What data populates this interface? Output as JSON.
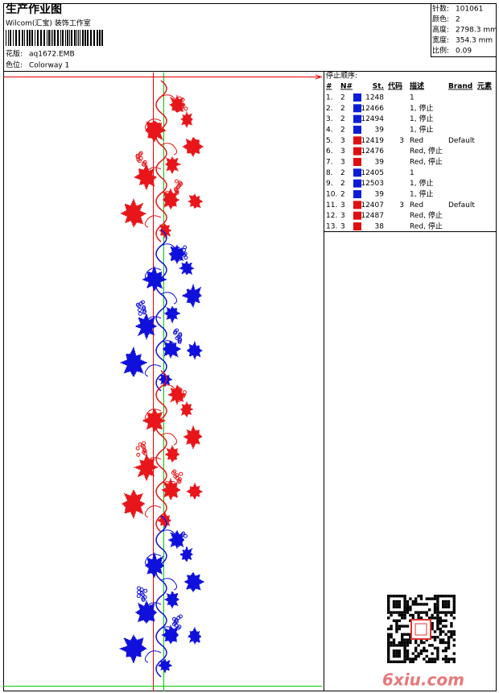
{
  "header": {
    "title": "生产作业图",
    "company": "Wilcom(汇宝) 装饰工作室",
    "design": {
      "label": "花版:",
      "value": "aq1672.EMB"
    },
    "colorway": {
      "label": "色位:",
      "value": "Colorway 1"
    }
  },
  "stats": [
    {
      "label": "针数:",
      "value": "101061"
    },
    {
      "label": "颜色:",
      "value": "2"
    },
    {
      "label": "高度:",
      "value": "2798.3 mm"
    },
    {
      "label": "宽度:",
      "value": "354.3 mm"
    },
    {
      "label": "比例:",
      "value": "0.09"
    }
  ],
  "stop_sequence": {
    "title": "停止顺序:",
    "columns": [
      "#",
      "N#",
      "St.",
      "代码",
      "描述",
      "Brand",
      "元素"
    ],
    "rows": [
      {
        "no": "1.",
        "needle": "2",
        "color": "#0a1ed8",
        "stitches": "1248",
        "code": "",
        "desc": "1",
        "brand": ""
      },
      {
        "no": "2.",
        "needle": "2",
        "color": "#0a1ed8",
        "stitches": "12466",
        "code": "",
        "desc": "1, 停止",
        "brand": ""
      },
      {
        "no": "3.",
        "needle": "2",
        "color": "#0a1ed8",
        "stitches": "12494",
        "code": "",
        "desc": "1, 停止",
        "brand": ""
      },
      {
        "no": "4.",
        "needle": "2",
        "color": "#0a1ed8",
        "stitches": "39",
        "code": "",
        "desc": "1, 停止",
        "brand": ""
      },
      {
        "no": "5.",
        "needle": "3",
        "color": "#e01010",
        "stitches": "12419",
        "code": "3",
        "desc": "Red",
        "brand": "Default"
      },
      {
        "no": "6.",
        "needle": "3",
        "color": "#e01010",
        "stitches": "12476",
        "code": "",
        "desc": "Red, 停止",
        "brand": ""
      },
      {
        "no": "7.",
        "needle": "3",
        "color": "#e01010",
        "stitches": "39",
        "code": "",
        "desc": "Red, 停止",
        "brand": ""
      },
      {
        "no": "8.",
        "needle": "2",
        "color": "#0a1ed8",
        "stitches": "12405",
        "code": "",
        "desc": "1",
        "brand": ""
      },
      {
        "no": "9.",
        "needle": "2",
        "color": "#0a1ed8",
        "stitches": "12503",
        "code": "",
        "desc": "1, 停止",
        "brand": ""
      },
      {
        "no": "10.",
        "needle": "2",
        "color": "#0a1ed8",
        "stitches": "39",
        "code": "",
        "desc": "1, 停止",
        "brand": ""
      },
      {
        "no": "11.",
        "needle": "3",
        "color": "#e01010",
        "stitches": "12407",
        "code": "3",
        "desc": "Red",
        "brand": "Default"
      },
      {
        "no": "12.",
        "needle": "3",
        "color": "#e01010",
        "stitches": "12487",
        "code": "",
        "desc": "Red, 停止",
        "brand": ""
      },
      {
        "no": "13.",
        "needle": "3",
        "color": "#e01010",
        "stitches": "38",
        "code": "",
        "desc": "Red, 停止",
        "brand": ""
      }
    ]
  },
  "watermark": "6xiu.com"
}
